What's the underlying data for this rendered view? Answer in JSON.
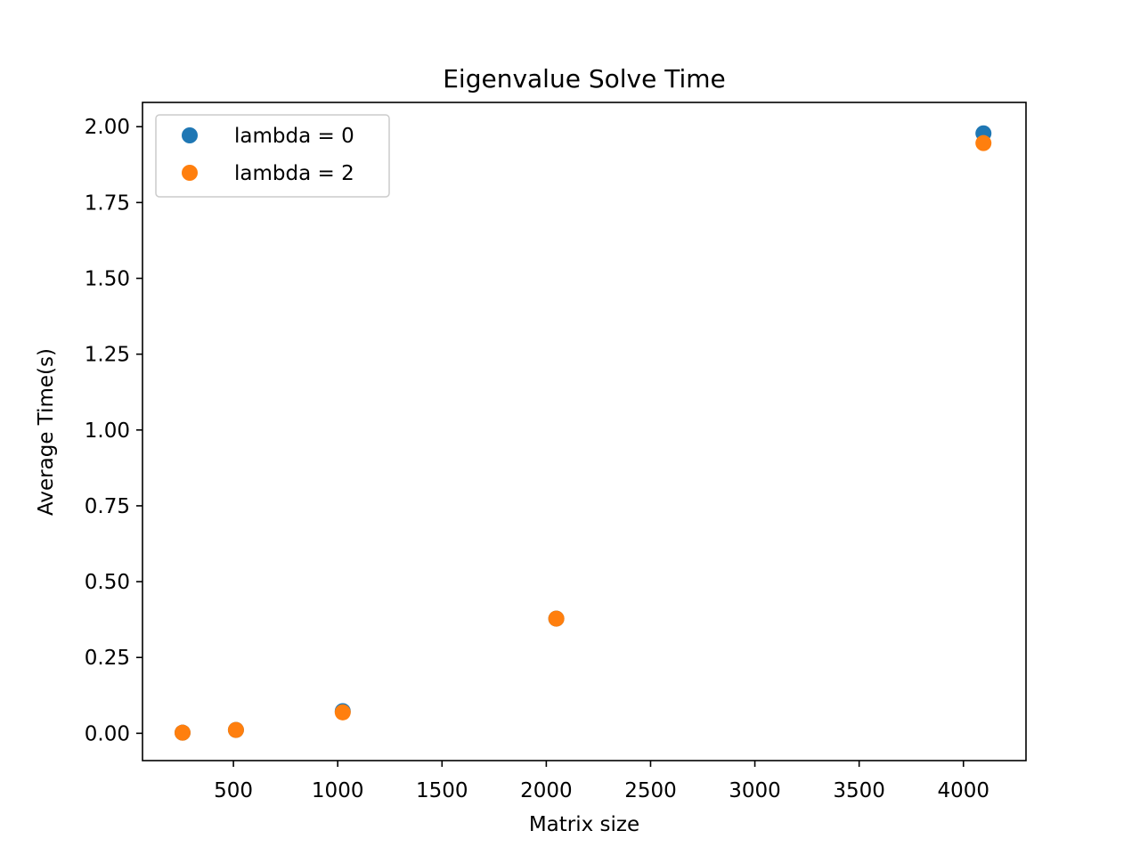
{
  "chart_data": {
    "type": "scatter",
    "title": "Eigenvalue Solve Time",
    "xlabel": "Matrix size",
    "ylabel": "Average Time(s)",
    "xlim": [
      64,
      4300
    ],
    "ylim": [
      -0.09,
      2.08
    ],
    "xticks": [
      500,
      1000,
      1500,
      2000,
      2500,
      3000,
      3500,
      4000
    ],
    "xtick_labels": [
      "500",
      "1000",
      "1500",
      "2000",
      "2500",
      "3000",
      "3500",
      "4000"
    ],
    "yticks": [
      0.0,
      0.25,
      0.5,
      0.75,
      1.0,
      1.25,
      1.5,
      1.75,
      2.0
    ],
    "ytick_labels": [
      "0.00",
      "0.25",
      "0.50",
      "0.75",
      "1.00",
      "1.25",
      "1.50",
      "1.75",
      "2.00"
    ],
    "grid": false,
    "legend_position": "upper left",
    "series": [
      {
        "name": "lambda = 0",
        "color": "#1f77b4",
        "x": [
          256,
          512,
          1024,
          2048,
          4096
        ],
        "y": [
          0.002,
          0.011,
          0.073,
          0.378,
          1.978
        ]
      },
      {
        "name": "lambda = 2",
        "color": "#ff7f0e",
        "x": [
          256,
          512,
          1024,
          2048,
          4096
        ],
        "y": [
          0.002,
          0.011,
          0.069,
          0.378,
          1.946
        ]
      }
    ]
  }
}
